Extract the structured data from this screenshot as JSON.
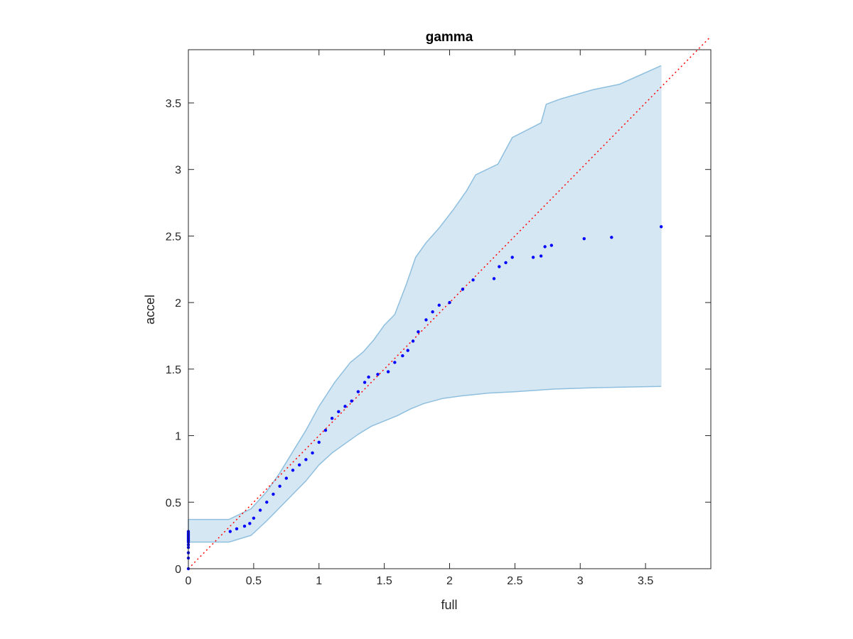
{
  "chart_data": {
    "type": "scatter",
    "title": "gamma",
    "xlabel": "full",
    "ylabel": "accel",
    "xlim": [
      0,
      4
    ],
    "ylim": [
      0,
      3.9
    ],
    "xticks": [
      0,
      0.5,
      1,
      1.5,
      2,
      2.5,
      3,
      3.5
    ],
    "xtick_labels": [
      "0",
      "0.5",
      "1",
      "1.5",
      "2",
      "2.5",
      "3",
      "3.5"
    ],
    "yticks": [
      0,
      0.5,
      1,
      1.5,
      2,
      2.5,
      3,
      3.5
    ],
    "ytick_labels": [
      "0",
      "0.5",
      "1",
      "1.5",
      "2",
      "2.5",
      "3",
      "3.5"
    ],
    "grid": false,
    "box": true,
    "colors": {
      "points": "#0000ff",
      "reference_line": "#ff0000",
      "band_fill": "#d6e7f4",
      "band_edge": "#8ebfde",
      "axis": "#262626"
    },
    "confidence_band": {
      "upper": [
        [
          0,
          0.37
        ],
        [
          0.31,
          0.37
        ],
        [
          0.48,
          0.45
        ],
        [
          0.6,
          0.58
        ],
        [
          0.7,
          0.72
        ],
        [
          0.8,
          0.88
        ],
        [
          0.9,
          1.04
        ],
        [
          1,
          1.22
        ],
        [
          1.12,
          1.4
        ],
        [
          1.24,
          1.55
        ],
        [
          1.34,
          1.63
        ],
        [
          1.42,
          1.72
        ],
        [
          1.5,
          1.83
        ],
        [
          1.58,
          1.91
        ],
        [
          1.67,
          2.14
        ],
        [
          1.74,
          2.34
        ],
        [
          1.82,
          2.45
        ],
        [
          1.92,
          2.56
        ],
        [
          2.03,
          2.7
        ],
        [
          2.13,
          2.84
        ],
        [
          2.2,
          2.96
        ],
        [
          2.37,
          3.04
        ],
        [
          2.48,
          3.24
        ],
        [
          2.7,
          3.35
        ],
        [
          2.74,
          3.49
        ],
        [
          2.85,
          3.53
        ],
        [
          3.1,
          3.6
        ],
        [
          3.3,
          3.64
        ],
        [
          3.62,
          3.78
        ]
      ],
      "lower": [
        [
          0,
          0.2
        ],
        [
          0.31,
          0.2
        ],
        [
          0.48,
          0.25
        ],
        [
          0.6,
          0.36
        ],
        [
          0.7,
          0.46
        ],
        [
          0.8,
          0.56
        ],
        [
          0.9,
          0.66
        ],
        [
          1,
          0.78
        ],
        [
          1.1,
          0.87
        ],
        [
          1.2,
          0.94
        ],
        [
          1.3,
          1.01
        ],
        [
          1.4,
          1.07
        ],
        [
          1.5,
          1.11
        ],
        [
          1.6,
          1.15
        ],
        [
          1.7,
          1.2
        ],
        [
          1.8,
          1.24
        ],
        [
          1.95,
          1.28
        ],
        [
          2.1,
          1.3
        ],
        [
          2.3,
          1.32
        ],
        [
          2.5,
          1.33
        ],
        [
          2.8,
          1.35
        ],
        [
          3.1,
          1.36
        ],
        [
          3.62,
          1.37
        ]
      ]
    },
    "reference_line": {
      "from": [
        0,
        0
      ],
      "to": [
        4,
        4
      ]
    },
    "series": [
      {
        "type": "scatter",
        "points": [
          [
            0,
            0
          ],
          [
            0,
            0.08
          ],
          [
            0,
            0.12
          ],
          [
            0,
            0.16
          ],
          [
            0,
            0.18
          ],
          [
            0,
            0.2
          ],
          [
            0,
            0.21
          ],
          [
            0,
            0.22
          ],
          [
            0,
            0.23
          ],
          [
            0,
            0.24
          ],
          [
            0,
            0.25
          ],
          [
            0,
            0.26
          ],
          [
            0,
            0.27
          ],
          [
            0,
            0.28
          ],
          [
            0.32,
            0.28
          ],
          [
            0.37,
            0.3
          ],
          [
            0.43,
            0.32
          ],
          [
            0.47,
            0.34
          ],
          [
            0.5,
            0.38
          ],
          [
            0.55,
            0.44
          ],
          [
            0.6,
            0.5
          ],
          [
            0.65,
            0.56
          ],
          [
            0.7,
            0.62
          ],
          [
            0.75,
            0.68
          ],
          [
            0.8,
            0.74
          ],
          [
            0.85,
            0.78
          ],
          [
            0.9,
            0.82
          ],
          [
            0.95,
            0.87
          ],
          [
            1.0,
            0.95
          ],
          [
            1.05,
            1.04
          ],
          [
            1.1,
            1.13
          ],
          [
            1.15,
            1.18
          ],
          [
            1.2,
            1.22
          ],
          [
            1.25,
            1.26
          ],
          [
            1.3,
            1.33
          ],
          [
            1.35,
            1.4
          ],
          [
            1.38,
            1.44
          ],
          [
            1.45,
            1.46
          ],
          [
            1.53,
            1.48
          ],
          [
            1.58,
            1.55
          ],
          [
            1.64,
            1.6
          ],
          [
            1.68,
            1.64
          ],
          [
            1.72,
            1.71
          ],
          [
            1.76,
            1.78
          ],
          [
            1.82,
            1.87
          ],
          [
            1.87,
            1.93
          ],
          [
            1.92,
            1.98
          ],
          [
            2.0,
            2.0
          ],
          [
            2.1,
            2.1
          ],
          [
            2.18,
            2.17
          ],
          [
            2.34,
            2.18
          ],
          [
            2.38,
            2.27
          ],
          [
            2.43,
            2.3
          ],
          [
            2.48,
            2.34
          ],
          [
            2.64,
            2.34
          ],
          [
            2.7,
            2.35
          ],
          [
            2.73,
            2.42
          ],
          [
            2.78,
            2.43
          ],
          [
            3.03,
            2.48
          ],
          [
            3.24,
            2.49
          ],
          [
            3.62,
            2.57
          ]
        ]
      }
    ]
  }
}
